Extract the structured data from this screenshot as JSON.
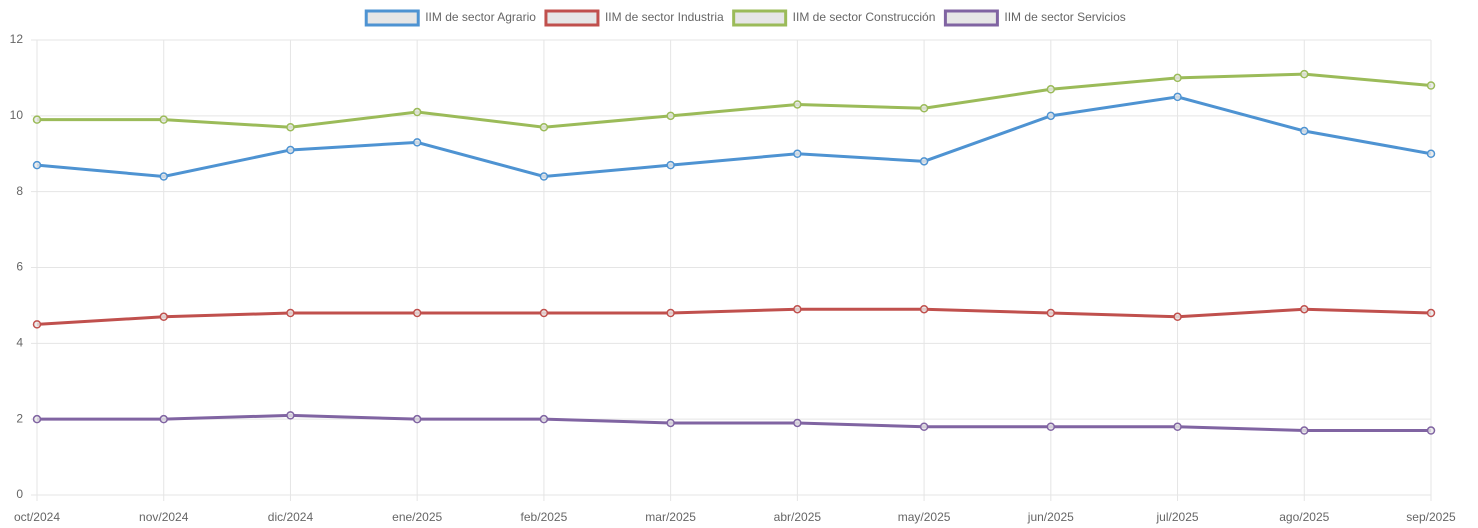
{
  "chart_data": {
    "type": "line",
    "categories": [
      "oct/2024",
      "nov/2024",
      "dic/2024",
      "ene/2025",
      "feb/2025",
      "mar/2025",
      "abr/2025",
      "may/2025",
      "jun/2025",
      "jul/2025",
      "ago/2025",
      "sep/2025"
    ],
    "series": [
      {
        "name": "IIM de sector Agrario",
        "color": "#4e93d2",
        "values": [
          8.7,
          8.4,
          9.1,
          9.3,
          8.4,
          8.7,
          9.0,
          8.8,
          10.0,
          10.5,
          9.6,
          9.0
        ]
      },
      {
        "name": "IIM de sector Industria",
        "color": "#c0504d",
        "values": [
          4.5,
          4.7,
          4.8,
          4.8,
          4.8,
          4.8,
          4.9,
          4.9,
          4.8,
          4.7,
          4.9,
          4.8
        ]
      },
      {
        "name": "IIM de sector Construcción",
        "color": "#9bbb59",
        "values": [
          9.9,
          9.9,
          9.7,
          10.1,
          9.7,
          10.0,
          10.3,
          10.2,
          10.7,
          11.0,
          11.1,
          10.8
        ]
      },
      {
        "name": "IIM de sector Servicios",
        "color": "#8064a2",
        "values": [
          2.0,
          2.0,
          2.1,
          2.0,
          2.0,
          1.9,
          1.9,
          1.8,
          1.8,
          1.8,
          1.7,
          1.7
        ]
      }
    ],
    "ylim": [
      0,
      12
    ],
    "yticks": [
      0,
      2,
      4,
      6,
      8,
      10,
      12
    ],
    "grid": true,
    "legend": "top"
  }
}
